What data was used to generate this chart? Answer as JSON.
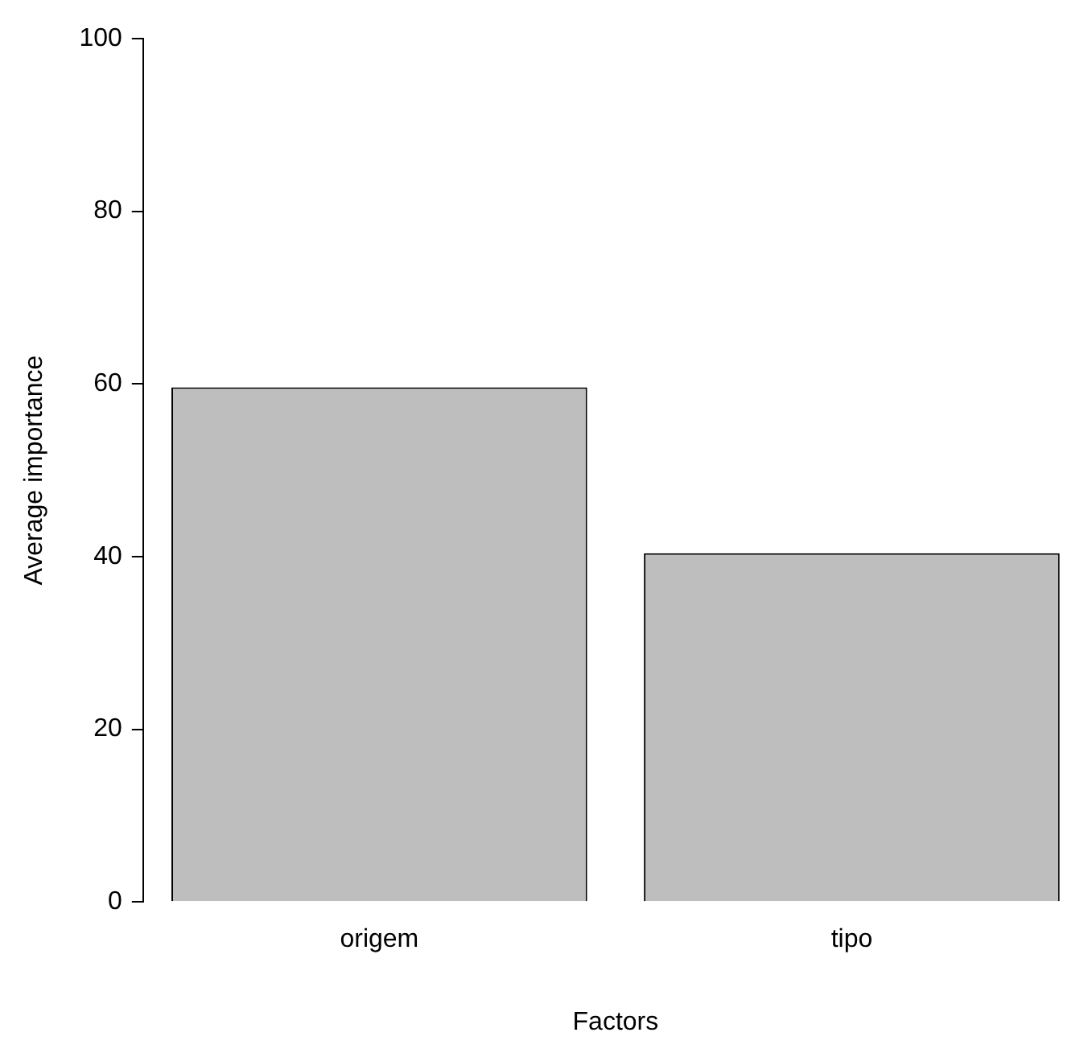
{
  "chart_data": {
    "type": "bar",
    "xlabel": "Factors",
    "ylabel": "Average importance",
    "categories": [
      "origem",
      "tipo"
    ],
    "values": [
      59.6,
      40.4
    ],
    "color": "#bebebe",
    "ylim": [
      0,
      100
    ],
    "yticks": [
      0,
      20,
      40,
      60,
      80,
      100
    ],
    "grid": false,
    "legend": false
  }
}
